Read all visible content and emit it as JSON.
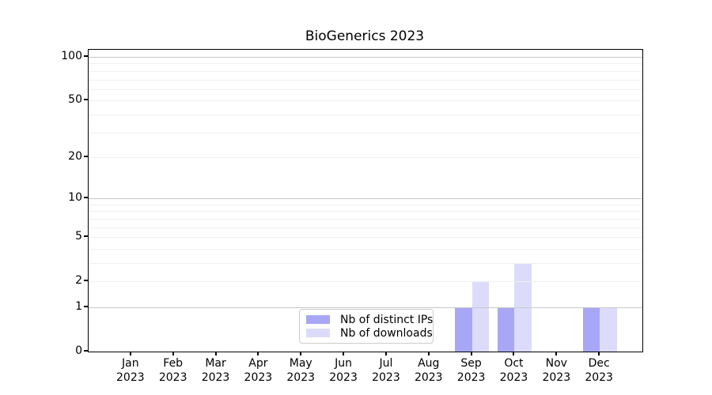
{
  "title": "BioGenerics 2023",
  "chart_data": {
    "type": "bar",
    "title": "BioGenerics 2023",
    "categories": [
      {
        "month": "Jan",
        "year": "2023"
      },
      {
        "month": "Feb",
        "year": "2023"
      },
      {
        "month": "Mar",
        "year": "2023"
      },
      {
        "month": "Apr",
        "year": "2023"
      },
      {
        "month": "May",
        "year": "2023"
      },
      {
        "month": "Jun",
        "year": "2023"
      },
      {
        "month": "Jul",
        "year": "2023"
      },
      {
        "month": "Aug",
        "year": "2023"
      },
      {
        "month": "Sep",
        "year": "2023"
      },
      {
        "month": "Oct",
        "year": "2023"
      },
      {
        "month": "Nov",
        "year": "2023"
      },
      {
        "month": "Dec",
        "year": "2023"
      }
    ],
    "series": [
      {
        "name": "Nb of distinct IPs",
        "color": "#a7a7f5",
        "values": [
          0,
          0,
          0,
          0,
          0,
          0,
          0,
          0,
          1,
          1,
          0,
          1
        ]
      },
      {
        "name": "Nb of downloads",
        "color": "#dcdcfa",
        "values": [
          0,
          0,
          0,
          0,
          0,
          0,
          0,
          0,
          2,
          3,
          0,
          1
        ]
      }
    ],
    "xlabel": "",
    "ylabel": "",
    "yscale": "log1p",
    "ylim": [
      0,
      112
    ],
    "y_ticks": [
      100,
      50,
      20,
      10,
      5,
      2,
      1,
      0
    ],
    "grid": {
      "major_values": [
        1,
        10,
        100
      ],
      "minor_values": [
        2,
        3,
        4,
        5,
        6,
        7,
        8,
        9,
        20,
        30,
        40,
        50,
        60,
        70,
        80,
        90
      ],
      "major_color": "#c8c8c8",
      "minor_color": "#f0f0f0"
    },
    "legend_position": "lower center",
    "bar_group_width_fraction": 0.8,
    "spine_color": "#000000",
    "background_color": "#ffffff"
  }
}
